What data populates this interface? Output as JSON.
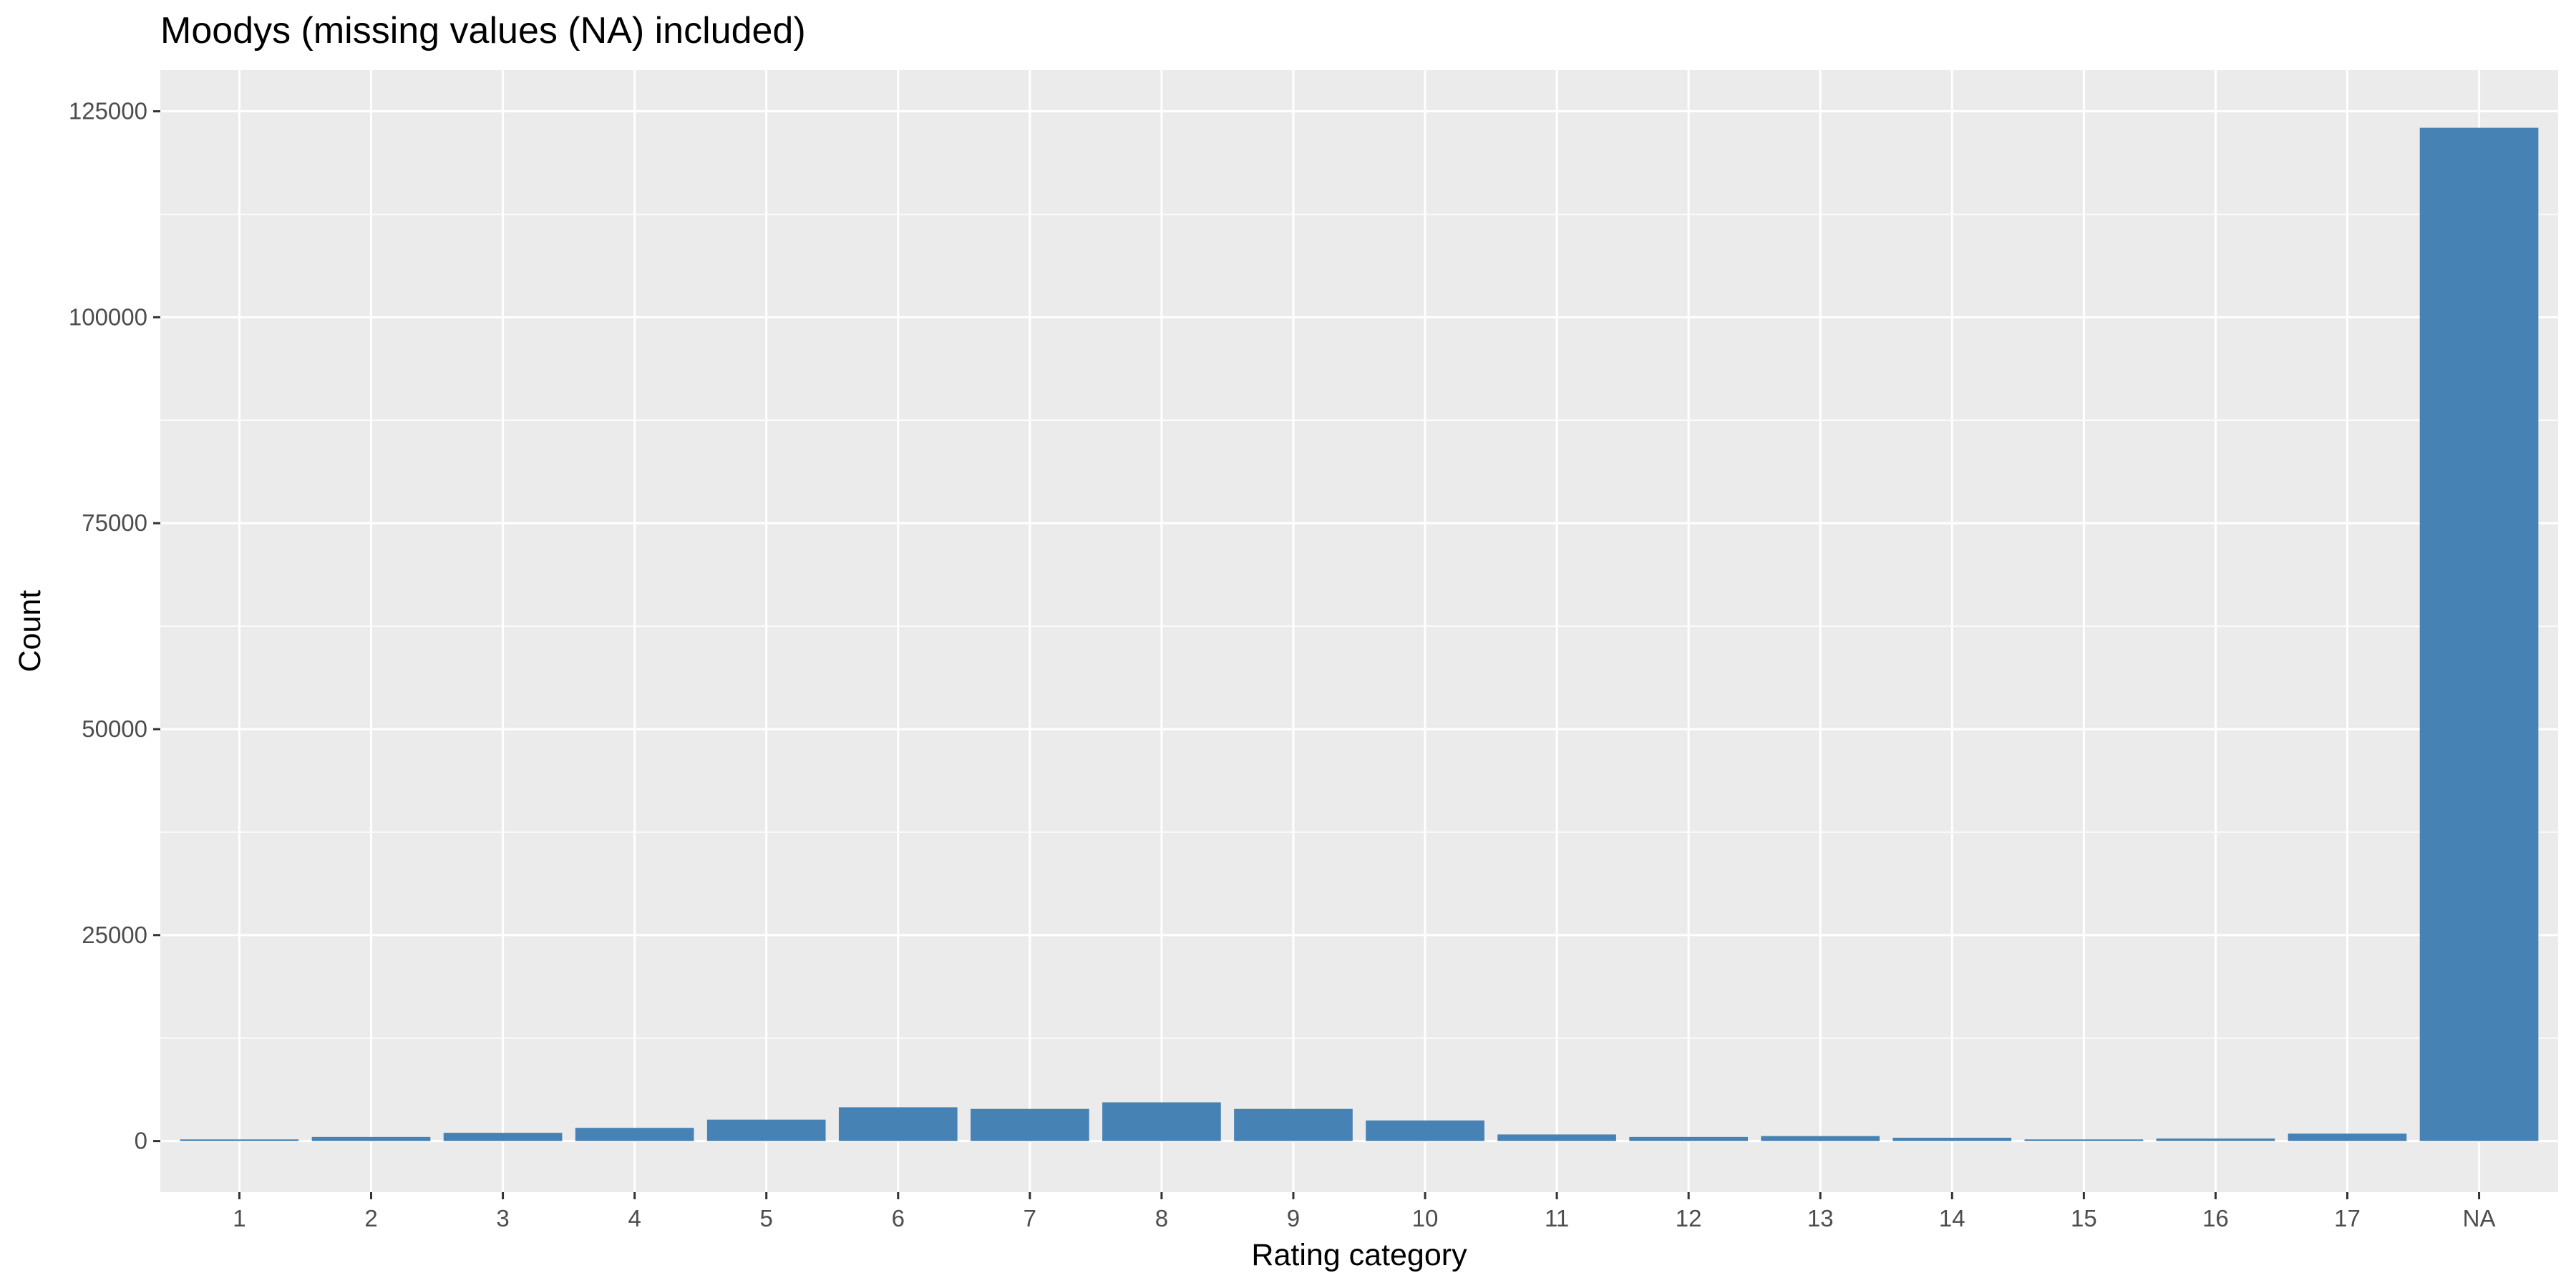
{
  "colors": {
    "panel_background": "#ebebeb",
    "grid_major": "#ffffff",
    "bar_fill": "#4682b4",
    "tick": "#333333",
    "tick_label": "#4d4d4d"
  },
  "chart_data": {
    "type": "bar",
    "title": "Moodys (missing values (NA) included)",
    "xlabel": "Rating category",
    "ylabel": "Count",
    "categories": [
      "1",
      "2",
      "3",
      "4",
      "5",
      "6",
      "7",
      "8",
      "9",
      "10",
      "11",
      "12",
      "13",
      "14",
      "15",
      "16",
      "17",
      "NA"
    ],
    "values": [
      200,
      500,
      1000,
      1600,
      2600,
      4100,
      3900,
      4700,
      3900,
      2500,
      800,
      500,
      600,
      400,
      200,
      300,
      900,
      123000
    ],
    "yticks": [
      0,
      25000,
      50000,
      75000,
      100000,
      125000
    ],
    "ylim": [
      -6200,
      130000
    ],
    "grid": true,
    "legend": "none"
  }
}
